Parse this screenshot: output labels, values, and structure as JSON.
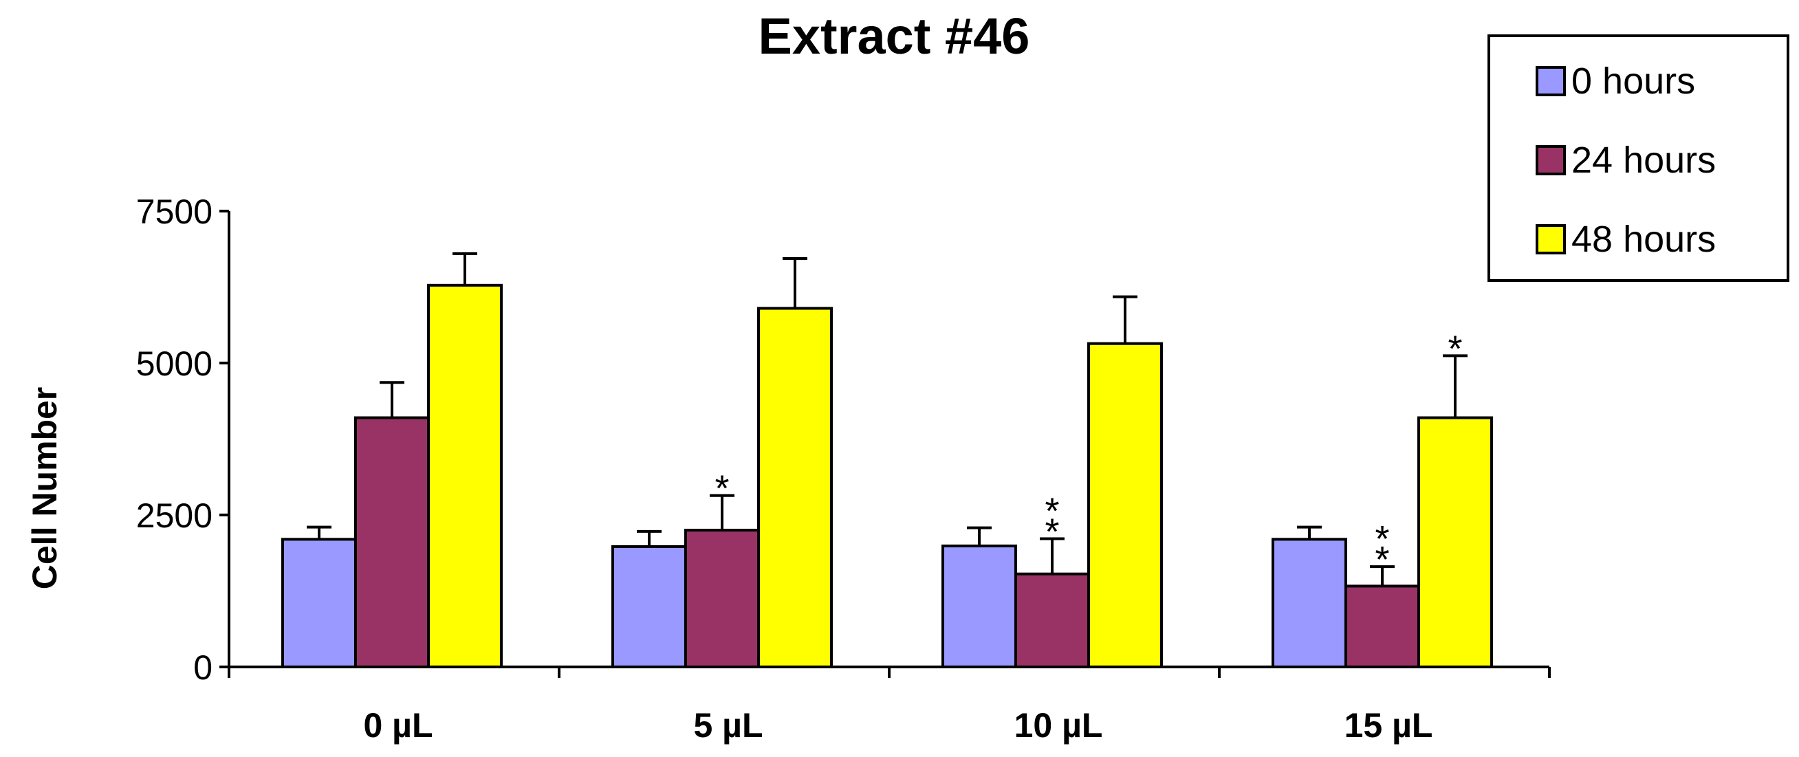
{
  "chart_data": {
    "type": "bar",
    "title": "Extract #46",
    "xlabel": "",
    "ylabel": "Cell Number",
    "ylim": [
      0,
      7500
    ],
    "yticks": [
      "0",
      "2500",
      "5000",
      "7500"
    ],
    "categories": [
      "0 µL",
      "5  µL",
      "10 µL",
      "15 µL"
    ],
    "series": [
      {
        "name": "0 hours",
        "color": "#9999ff",
        "values": [
          2100,
          1980,
          1990,
          2100
        ],
        "errors": [
          200,
          250,
          300,
          200
        ]
      },
      {
        "name": "24 hours",
        "color": "#993366",
        "values": [
          4100,
          2250,
          1530,
          1330
        ],
        "errors": [
          580,
          570,
          580,
          320
        ]
      },
      {
        "name": "48 hours",
        "color": "#ffff00",
        "values": [
          6280,
          5900,
          5320,
          4100
        ],
        "errors": [
          520,
          820,
          770,
          1020
        ]
      }
    ],
    "annotations": [
      {
        "category": 1,
        "series": 1,
        "text": "*"
      },
      {
        "category": 2,
        "series": 1,
        "text": "**"
      },
      {
        "category": 3,
        "series": 1,
        "text": "**"
      },
      {
        "category": 3,
        "series": 2,
        "text": "*"
      }
    ],
    "legend_position": "top-right",
    "grid": false
  }
}
